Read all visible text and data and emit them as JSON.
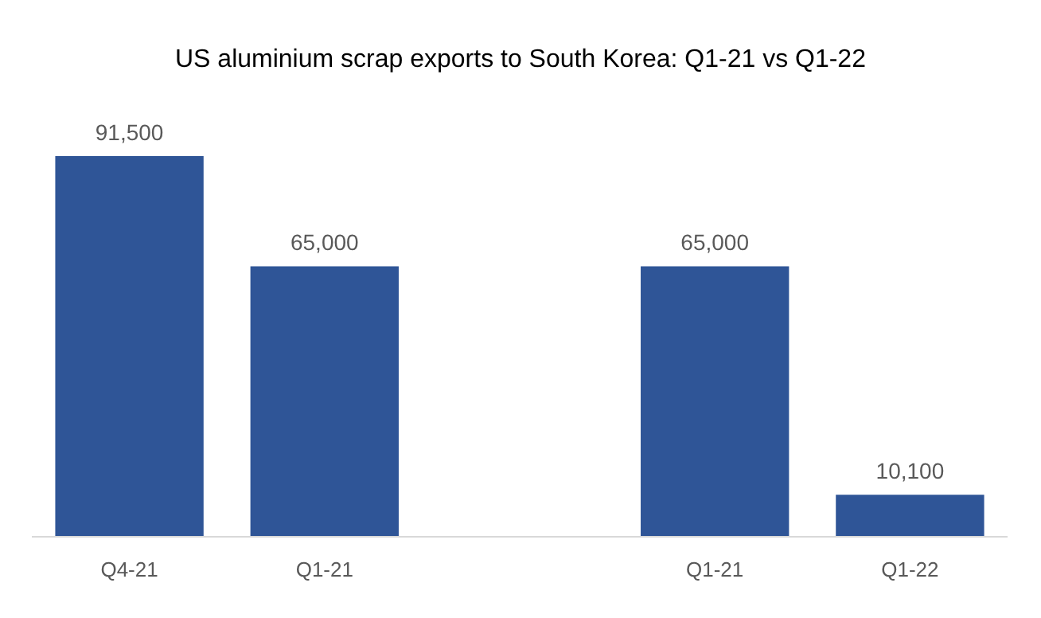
{
  "chart_data": {
    "type": "bar",
    "title": "US aluminium scrap exports to South Korea: Q1-21 vs Q1-22",
    "categories": [
      "Q4-21",
      "Q1-21",
      null,
      "Q1-21",
      "Q1-22"
    ],
    "values": [
      91500,
      65000,
      null,
      65000,
      10100
    ],
    "value_labels": [
      "91,500",
      "65,000",
      null,
      "65,000",
      "10,100"
    ],
    "color": "#2f5597"
  }
}
